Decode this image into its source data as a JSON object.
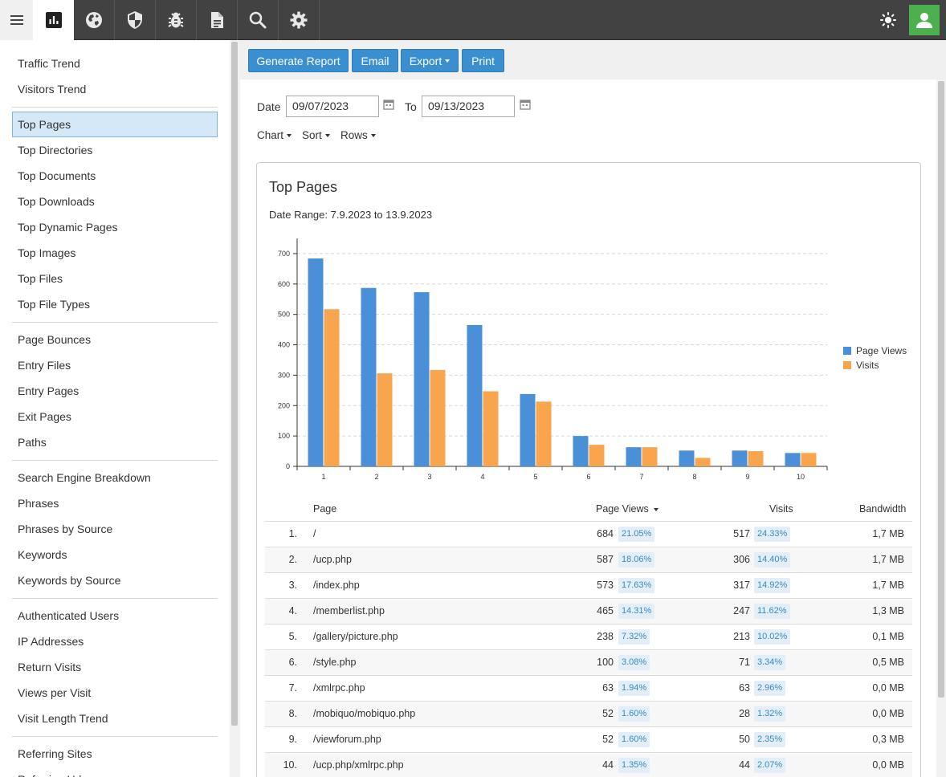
{
  "topbar": {
    "tabs": [
      {
        "name": "tab-reports",
        "icon": "bar-chart-icon"
      },
      {
        "name": "tab-web",
        "icon": "globe-icon"
      },
      {
        "name": "tab-security",
        "icon": "shield-icon"
      },
      {
        "name": "tab-errors",
        "icon": "bug-icon"
      },
      {
        "name": "tab-logs",
        "icon": "document-icon"
      },
      {
        "name": "tab-search",
        "icon": "search-icon"
      },
      {
        "name": "tab-settings",
        "icon": "gear-icon"
      }
    ],
    "theme_icon": "sun-icon",
    "avatar_icon": "user-icon",
    "avatar_color": "#4caf50"
  },
  "sidebar": {
    "groups": [
      [
        "Traffic Trend",
        "Visitors Trend"
      ],
      [
        "Top Pages",
        "Top Directories",
        "Top Documents",
        "Top Downloads",
        "Top Dynamic Pages",
        "Top Images",
        "Top Files",
        "Top File Types"
      ],
      [
        "Page Bounces",
        "Entry Files",
        "Entry Pages",
        "Exit Pages",
        "Paths"
      ],
      [
        "Search Engine Breakdown",
        "Phrases",
        "Phrases by Source",
        "Keywords",
        "Keywords by Source"
      ],
      [
        "Authenticated Users",
        "IP Addresses",
        "Return Visits",
        "Views per Visit",
        "Visit Length Trend"
      ],
      [
        "Referring Sites",
        "Referring Urls"
      ]
    ],
    "active": "Top Pages"
  },
  "toolbar": {
    "generate": "Generate Report",
    "email": "Email",
    "export": "Export",
    "print": "Print",
    "accent": "#3a8fd1"
  },
  "filters": {
    "date_label": "Date",
    "date_from": "09/07/2023",
    "to_label": "To",
    "date_to": "09/13/2023",
    "chart": "Chart",
    "sort": "Sort",
    "rows": "Rows"
  },
  "report": {
    "title": "Top Pages",
    "subtitle": "Date Range: 7.9.2023 to 13.9.2023"
  },
  "chart_data": {
    "type": "bar",
    "categories": [
      "1",
      "2",
      "3",
      "4",
      "5",
      "6",
      "7",
      "8",
      "9",
      "10"
    ],
    "series": [
      {
        "name": "Page Views",
        "color": "#4a90d9",
        "values": [
          684,
          587,
          573,
          465,
          238,
          100,
          63,
          52,
          52,
          44
        ]
      },
      {
        "name": "Visits",
        "color": "#f9a54e",
        "values": [
          517,
          306,
          317,
          247,
          213,
          71,
          63,
          28,
          50,
          44
        ]
      }
    ],
    "ylim": [
      0,
      750
    ],
    "yticks": [
      "0",
      "100",
      "200",
      "300",
      "400",
      "500",
      "600",
      "700"
    ],
    "grid": true,
    "legend": "right"
  },
  "table": {
    "headers": {
      "page": "Page",
      "views": "Page Views",
      "visits": "Visits",
      "bandwidth": "Bandwidth"
    },
    "rows": [
      {
        "rank": "1.",
        "page": "/",
        "views": "684",
        "views_pct": "21.05%",
        "visits": "517",
        "visits_pct": "24.33%",
        "bw": "1,7 MB"
      },
      {
        "rank": "2.",
        "page": "/ucp.php",
        "views": "587",
        "views_pct": "18.06%",
        "visits": "306",
        "visits_pct": "14.40%",
        "bw": "1,7 MB"
      },
      {
        "rank": "3.",
        "page": "/index.php",
        "views": "573",
        "views_pct": "17.63%",
        "visits": "317",
        "visits_pct": "14.92%",
        "bw": "1,7 MB"
      },
      {
        "rank": "4.",
        "page": "/memberlist.php",
        "views": "465",
        "views_pct": "14.31%",
        "visits": "247",
        "visits_pct": "11.62%",
        "bw": "1,3 MB"
      },
      {
        "rank": "5.",
        "page": "/gallery/picture.php",
        "views": "238",
        "views_pct": "7.32%",
        "visits": "213",
        "visits_pct": "10.02%",
        "bw": "0,1 MB"
      },
      {
        "rank": "6.",
        "page": "/style.php",
        "views": "100",
        "views_pct": "3.08%",
        "visits": "71",
        "visits_pct": "3.34%",
        "bw": "0,5 MB"
      },
      {
        "rank": "7.",
        "page": "/xmlrpc.php",
        "views": "63",
        "views_pct": "1.94%",
        "visits": "63",
        "visits_pct": "2.96%",
        "bw": "0,0 MB"
      },
      {
        "rank": "8.",
        "page": "/mobiquo/mobiquo.php",
        "views": "52",
        "views_pct": "1.60%",
        "visits": "28",
        "visits_pct": "1.32%",
        "bw": "0,0 MB"
      },
      {
        "rank": "9.",
        "page": "/viewforum.php",
        "views": "52",
        "views_pct": "1.60%",
        "visits": "50",
        "visits_pct": "2.35%",
        "bw": "0,3 MB"
      },
      {
        "rank": "10.",
        "page": "/ucp.php/xmlrpc.php",
        "views": "44",
        "views_pct": "1.35%",
        "visits": "44",
        "visits_pct": "2.07%",
        "bw": "0,0 MB"
      }
    ]
  }
}
